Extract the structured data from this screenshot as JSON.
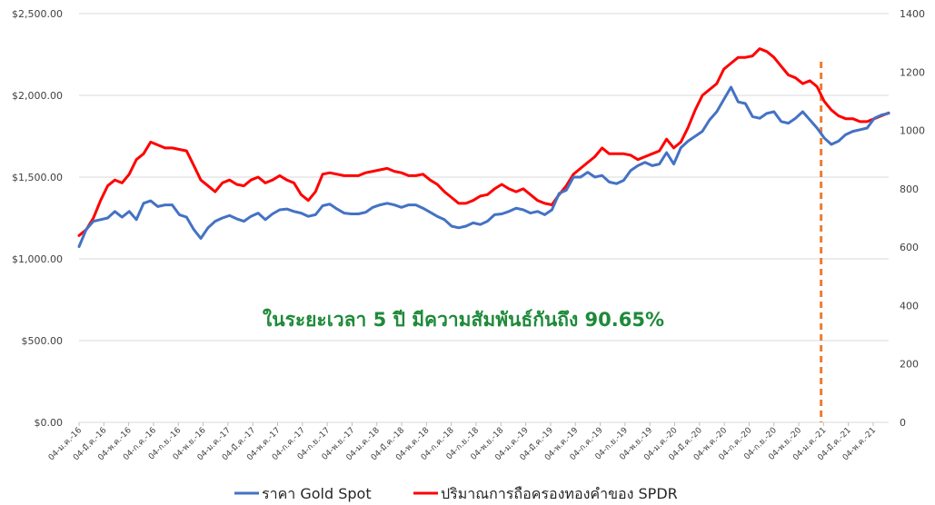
{
  "chart_data": {
    "type": "line",
    "annotation": "ในระยะเวลา 5 ปี มีความสัมพันธ์กันถึง 90.65%",
    "y_left": {
      "ylim": [
        0,
        2500
      ],
      "ticks": [
        0,
        500,
        1000,
        1500,
        2000,
        2500
      ],
      "tick_labels": [
        "$0.00",
        "$500.00",
        "$1,000.00",
        "$1,500.00",
        "$2,000.00",
        "$2,500.00"
      ]
    },
    "y_right": {
      "ylim": [
        0,
        1400
      ],
      "ticks": [
        0,
        200,
        400,
        600,
        800,
        1000,
        1200,
        1400
      ],
      "tick_labels": [
        "0",
        "200",
        "400",
        "600",
        "800",
        "1000",
        "1200",
        "1400"
      ]
    },
    "x_tick_labels": [
      "04-ม.ค.-16",
      "04-มี.ค.-16",
      "04-พ.ค.-16",
      "04-ก.ค.-16",
      "04-ก.ย.-16",
      "04-พ.ย.-16",
      "04-ม.ค.-17",
      "04-มี.ค.-17",
      "04-พ.ค.-17",
      "04-ก.ค.-17",
      "04-ก.ย.-17",
      "04-พ.ย.-17",
      "04-ม.ค.-18",
      "04-มี.ค.-18",
      "04-พ.ค.-18",
      "04-ก.ค.-18",
      "04-ก.ย.-18",
      "04-พ.ย.-18",
      "04-ม.ค.-19",
      "04-มี.ค.-19",
      "04-พ.ค.-19",
      "04-ก.ค.-19",
      "04-ก.ย.-19",
      "04-พ.ย.-19",
      "04-ม.ค.-20",
      "04-มี.ค.-20",
      "04-พ.ค.-20",
      "04-ก.ค.-20",
      "04-ก.ย.-20",
      "04-พ.ย.-20",
      "04-ม.ค.-21",
      "04-มี.ค.-21",
      "04-พ.ค.-21"
    ],
    "grid": true,
    "legend_position": "bottom",
    "marker_line": {
      "x_index": 29.9,
      "color": "#ed7d31",
      "style": "dashed"
    },
    "series": [
      {
        "name": "ราคา Gold Spot",
        "axis": "left",
        "color": "#4472c4",
        "values": [
          1075,
          1180,
          1230,
          1240,
          1250,
          1290,
          1255,
          1290,
          1240,
          1340,
          1355,
          1320,
          1330,
          1330,
          1270,
          1255,
          1180,
          1125,
          1190,
          1230,
          1250,
          1265,
          1245,
          1230,
          1260,
          1280,
          1240,
          1275,
          1300,
          1305,
          1290,
          1280,
          1260,
          1270,
          1325,
          1335,
          1305,
          1280,
          1275,
          1275,
          1285,
          1315,
          1330,
          1340,
          1330,
          1315,
          1330,
          1330,
          1310,
          1285,
          1260,
          1240,
          1200,
          1190,
          1200,
          1220,
          1210,
          1230,
          1270,
          1275,
          1290,
          1310,
          1300,
          1280,
          1290,
          1270,
          1300,
          1400,
          1420,
          1500,
          1500,
          1530,
          1500,
          1510,
          1470,
          1460,
          1480,
          1540,
          1570,
          1590,
          1570,
          1580,
          1650,
          1580,
          1680,
          1720,
          1750,
          1780,
          1850,
          1900,
          1975,
          2050,
          1960,
          1950,
          1870,
          1860,
          1890,
          1900,
          1840,
          1830,
          1860,
          1900,
          1850,
          1800,
          1740,
          1700,
          1720,
          1760,
          1780,
          1790,
          1800,
          1860,
          1880,
          1890
        ]
      },
      {
        "name": "ปริมาณการถือครองทองคำของ SPDR",
        "axis": "right",
        "color": "#ff0000",
        "values": [
          640,
          660,
          700,
          760,
          810,
          830,
          820,
          850,
          900,
          920,
          960,
          950,
          940,
          940,
          935,
          930,
          880,
          830,
          810,
          790,
          820,
          830,
          815,
          810,
          830,
          840,
          820,
          830,
          845,
          830,
          820,
          780,
          760,
          790,
          850,
          855,
          850,
          845,
          845,
          845,
          855,
          860,
          865,
          870,
          860,
          855,
          845,
          845,
          850,
          830,
          815,
          790,
          770,
          750,
          750,
          760,
          775,
          780,
          800,
          815,
          800,
          790,
          800,
          780,
          760,
          750,
          745,
          780,
          810,
          850,
          870,
          890,
          910,
          940,
          920,
          920,
          920,
          915,
          900,
          910,
          920,
          930,
          970,
          940,
          960,
          1010,
          1070,
          1120,
          1140,
          1160,
          1210,
          1230,
          1250,
          1250,
          1255,
          1280,
          1270,
          1250,
          1220,
          1190,
          1180,
          1160,
          1170,
          1150,
          1100,
          1070,
          1050,
          1040,
          1040,
          1030,
          1030,
          1040,
          1050,
          1060
        ]
      }
    ]
  }
}
